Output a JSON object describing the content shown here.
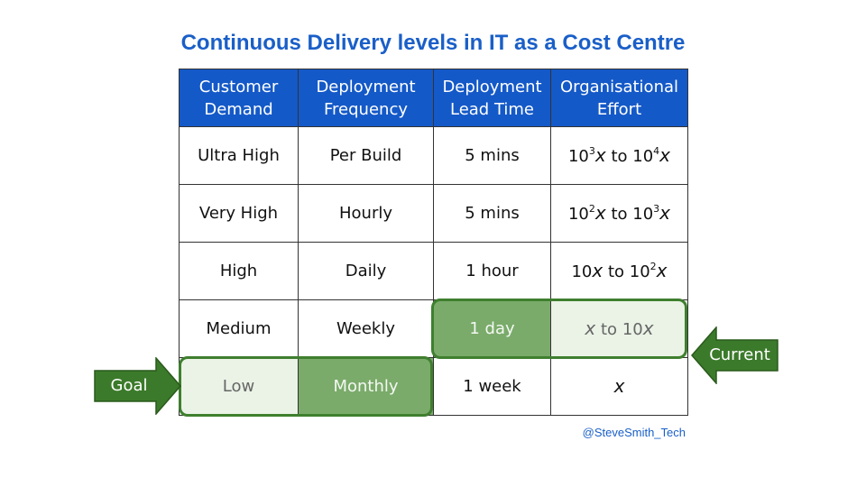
{
  "title": "Continuous Delivery levels in IT as a Cost Centre",
  "headers": [
    [
      "Customer",
      "Demand"
    ],
    [
      "Deployment",
      "Frequency"
    ],
    [
      "Deployment",
      "Lead Time"
    ],
    [
      "Organisational",
      "Effort"
    ]
  ],
  "rows": [
    {
      "demand": "Ultra High",
      "frequency": "Per Build",
      "lead_time": "5 mins",
      "effort": {
        "a": "10",
        "a_exp": "3",
        "mid": "to",
        "b": "10",
        "b_exp": "4"
      }
    },
    {
      "demand": "Very High",
      "frequency": "Hourly",
      "lead_time": "5 mins",
      "effort": {
        "a": "10",
        "a_exp": "2",
        "mid": "to",
        "b": "10",
        "b_exp": "3"
      }
    },
    {
      "demand": "High",
      "frequency": "Daily",
      "lead_time": "1 hour",
      "effort": {
        "a": "10",
        "a_exp": "",
        "mid": "to",
        "b": "10",
        "b_exp": "2"
      }
    },
    {
      "demand": "Medium",
      "frequency": "Weekly",
      "lead_time": "1 day",
      "effort": {
        "a": "",
        "a_exp": "",
        "mid": "to",
        "b": "10",
        "b_exp": ""
      }
    },
    {
      "demand": "Low",
      "frequency": "Monthly",
      "lead_time": "1 week",
      "effort": {
        "a": "",
        "a_exp": "",
        "mid": "",
        "b": "",
        "b_exp": ""
      }
    }
  ],
  "variable": "x",
  "labels": {
    "goal": "Goal",
    "current": "Current"
  },
  "credit": "@SteveSmith_Tech",
  "colors": {
    "title": "#1a5fc8",
    "header_bg": "#1459c8",
    "highlight_dark": "#7aab6a",
    "highlight_light": "#eaf3e6",
    "arrow": "#3b7a2a"
  }
}
